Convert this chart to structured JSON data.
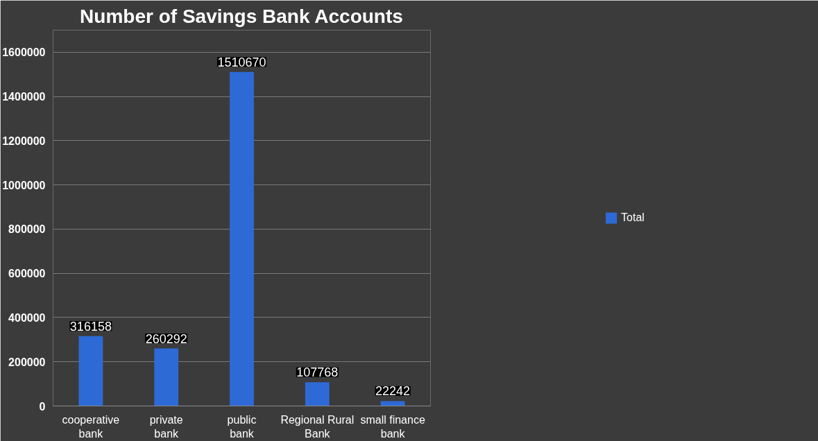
{
  "chart_data": {
    "type": "bar",
    "title": "Number of Savings Bank Accounts",
    "categories": [
      "cooperative bank",
      "private bank",
      "public bank",
      "Regional Rural Bank",
      "small finance bank"
    ],
    "series": [
      {
        "name": "Total",
        "color": "#2e6ad6",
        "values": [
          316158,
          260292,
          1510670,
          107768,
          22242
        ]
      }
    ],
    "ylim": [
      0,
      1700000
    ],
    "yticks": [
      0,
      200000,
      400000,
      600000,
      800000,
      1000000,
      1200000,
      1400000,
      1600000
    ],
    "grid": "y",
    "legend": "right",
    "data_labels": true
  }
}
